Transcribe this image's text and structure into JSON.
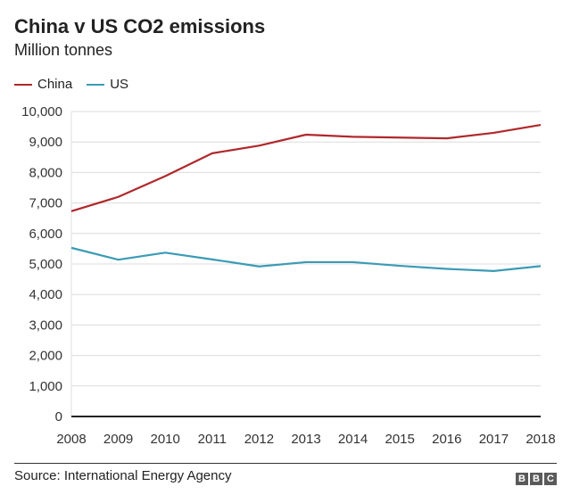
{
  "chart_data": {
    "type": "line",
    "title": "China v US CO2 emissions",
    "subtitle": "Million tonnes",
    "x": [
      2008,
      2009,
      2010,
      2011,
      2012,
      2013,
      2014,
      2015,
      2016,
      2017,
      2018
    ],
    "series": [
      {
        "name": "China",
        "color": "#b0282b",
        "values": [
          6730,
          7200,
          7880,
          8630,
          8880,
          9240,
          9170,
          9145,
          9120,
          9300,
          9560
        ]
      },
      {
        "name": "US",
        "color": "#3b9bb5",
        "values": [
          5530,
          5140,
          5370,
          5150,
          4920,
          5060,
          5060,
          4940,
          4840,
          4770,
          4930
        ]
      }
    ],
    "ylim": [
      0,
      10000
    ],
    "yticks": [
      "0",
      "1,000",
      "2,000",
      "3,000",
      "4,000",
      "5,000",
      "6,000",
      "7,000",
      "8,000",
      "9,000",
      "10,000"
    ],
    "ytick_values": [
      0,
      1000,
      2000,
      3000,
      4000,
      5000,
      6000,
      7000,
      8000,
      9000,
      10000
    ],
    "grid": true,
    "legend": "top-left",
    "source": "Source: International Energy Agency",
    "logo": "BBC"
  }
}
